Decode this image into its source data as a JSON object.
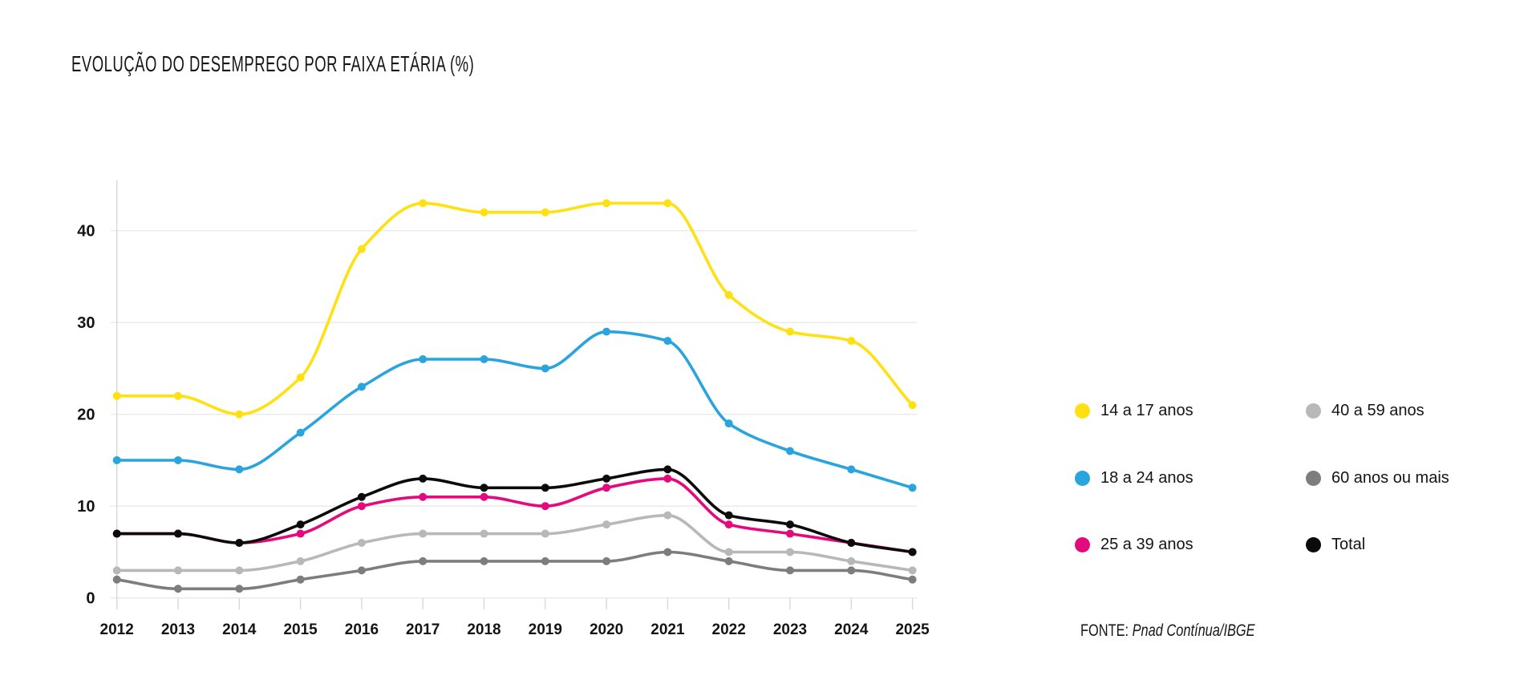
{
  "chart_data": {
    "type": "line",
    "title": "EVOLUÇÃO DO DESEMPREGO POR FAIXA ETÁRIA (%)",
    "x": [
      2012,
      2013,
      2014,
      2015,
      2016,
      2017,
      2018,
      2019,
      2020,
      2021,
      2022,
      2023,
      2024,
      2025
    ],
    "yticks": [
      0,
      10,
      20,
      30,
      40
    ],
    "ylim": [
      0,
      45
    ],
    "grid": "horizontal",
    "legend_position": "right",
    "series": [
      {
        "name": "14 a 17 anos",
        "color": "#FFE112",
        "values": [
          22,
          22,
          20,
          24,
          38,
          43,
          42,
          42,
          43,
          43,
          33,
          29,
          28,
          21
        ]
      },
      {
        "name": "18 a 24 anos",
        "color": "#29A4DF",
        "values": [
          15,
          15,
          14,
          18,
          23,
          26,
          26,
          25,
          29,
          28,
          19,
          16,
          14,
          12
        ]
      },
      {
        "name": "25 a 39 anos",
        "color": "#E4097D",
        "values": [
          7,
          7,
          6,
          7,
          10,
          11,
          11,
          10,
          12,
          13,
          8,
          7,
          6,
          5
        ]
      },
      {
        "name": "40 a 59 anos",
        "color": "#B8B8B8",
        "values": [
          3,
          3,
          3,
          4,
          6,
          7,
          7,
          7,
          8,
          9,
          5,
          5,
          4,
          3
        ]
      },
      {
        "name": "60 anos ou mais",
        "color": "#7D7D7D",
        "values": [
          2,
          1,
          1,
          2,
          3,
          4,
          4,
          4,
          4,
          5,
          4,
          3,
          3,
          2
        ]
      },
      {
        "name": "Total",
        "color": "#0B0B0B",
        "values": [
          7,
          7,
          6,
          8,
          11,
          13,
          12,
          12,
          13,
          14,
          9,
          8,
          6,
          5
        ]
      }
    ],
    "colors": {
      "gridline": "#EAEAEA",
      "axis": "#D8D8D8",
      "tick_text": "#141414"
    }
  },
  "source": {
    "label": "FONTE:",
    "text": "Pnad Contínua/IBGE"
  }
}
